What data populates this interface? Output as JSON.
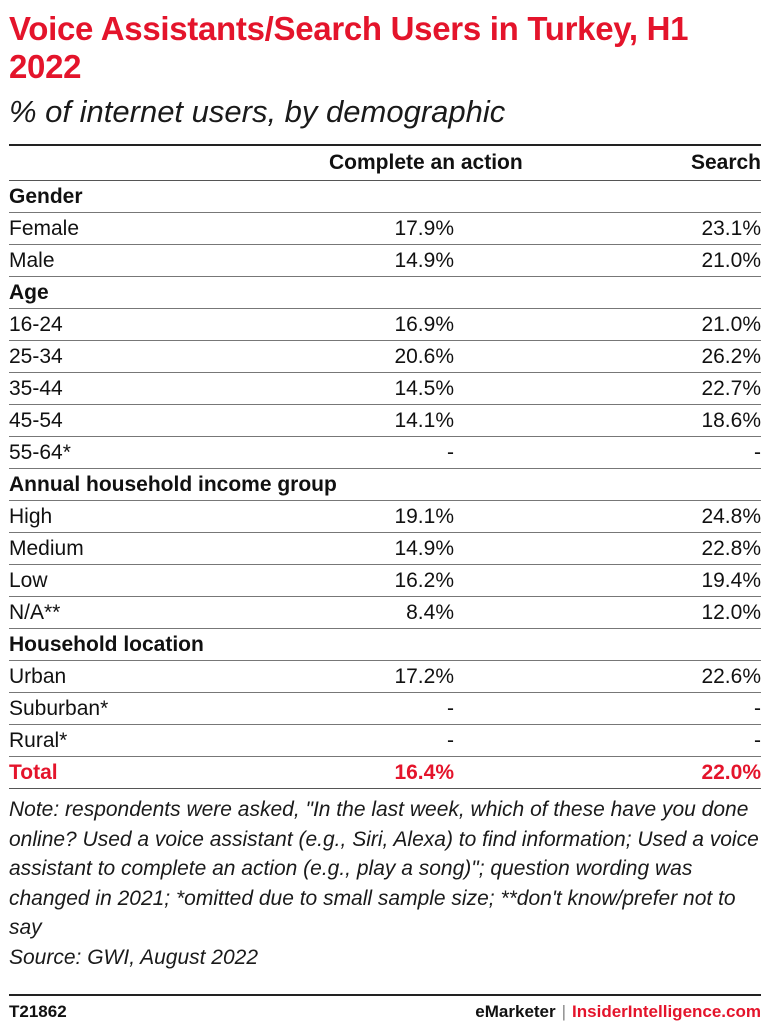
{
  "chart_data": {
    "type": "table",
    "title": "Voice Assistants/Search Users in Turkey, H1 2022",
    "subtitle": "% of internet users, by demographic",
    "columns": [
      "",
      "Complete an action",
      "Search"
    ],
    "groups": [
      {
        "name": "Gender",
        "rows": [
          {
            "label": "Female",
            "action": "17.9%",
            "search": "23.1%"
          },
          {
            "label": "Male",
            "action": "14.9%",
            "search": "21.0%"
          }
        ]
      },
      {
        "name": "Age",
        "rows": [
          {
            "label": "16-24",
            "action": "16.9%",
            "search": "21.0%"
          },
          {
            "label": "25-34",
            "action": "20.6%",
            "search": "26.2%"
          },
          {
            "label": "35-44",
            "action": "14.5%",
            "search": "22.7%"
          },
          {
            "label": "45-54",
            "action": "14.1%",
            "search": "18.6%"
          },
          {
            "label": "55-64*",
            "action": "-",
            "search": "-"
          }
        ]
      },
      {
        "name": "Annual household income group",
        "rows": [
          {
            "label": "High",
            "action": "19.1%",
            "search": "24.8%"
          },
          {
            "label": "Medium",
            "action": "14.9%",
            "search": "22.8%"
          },
          {
            "label": "Low",
            "action": "16.2%",
            "search": "19.4%"
          },
          {
            "label": "N/A**",
            "action": "8.4%",
            "search": "12.0%"
          }
        ]
      },
      {
        "name": "Household location",
        "rows": [
          {
            "label": "Urban",
            "action": "17.2%",
            "search": "22.6%"
          },
          {
            "label": "Suburban*",
            "action": "-",
            "search": "-"
          },
          {
            "label": "Rural*",
            "action": "-",
            "search": "-"
          }
        ]
      }
    ],
    "total": {
      "label": "Total",
      "action": "16.4%",
      "search": "22.0%"
    }
  },
  "note": "Note: respondents were asked, \"In the last week, which of these have you done online? Used a voice assistant (e.g., Siri, Alexa) to find information; Used a voice assistant to complete an action (e.g., play a song)\"; question wording was changed in 2021; *omitted due to small sample size; **don't know/prefer not to say",
  "source": "Source: GWI, August 2022",
  "footer": {
    "id": "T21862",
    "brand1": "eMarketer",
    "separator": "|",
    "brand2": "InsiderIntelligence.com"
  },
  "colors": {
    "accent": "#e4142b",
    "text": "#111111"
  }
}
